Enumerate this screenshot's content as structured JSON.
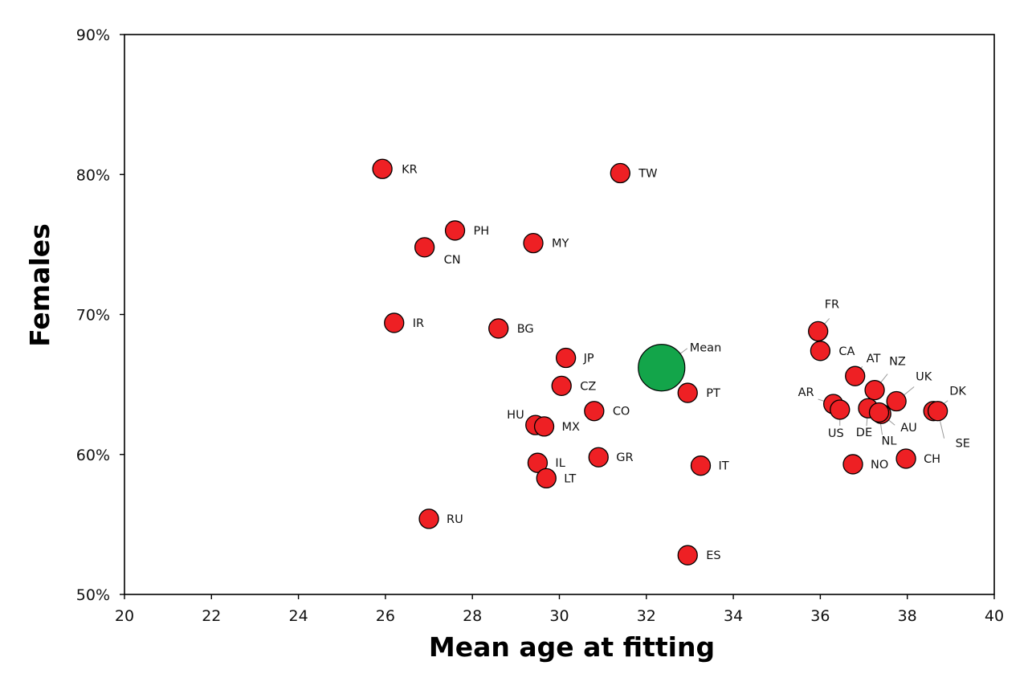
{
  "chart_data": {
    "type": "scatter",
    "xlabel": "Mean age at fitting",
    "ylabel": "Females",
    "xlim": [
      20,
      40
    ],
    "ylim": [
      50,
      90
    ],
    "x_ticks": [
      "20",
      "22",
      "24",
      "26",
      "28",
      "30",
      "32",
      "34",
      "36",
      "38",
      "40"
    ],
    "y_ticks": [
      "50%",
      "60%",
      "70%",
      "80%",
      "90%"
    ],
    "grid": false,
    "legend": "none",
    "colors": {
      "point": "#ee2024",
      "mean": "#13a54a",
      "outline": "#000000",
      "leader": "#999999"
    },
    "points": [
      {
        "label": "KR",
        "x": 25.93,
        "y": 80.4
      },
      {
        "label": "TW",
        "x": 31.4,
        "y": 80.1
      },
      {
        "label": "PH",
        "x": 27.6,
        "y": 76.0
      },
      {
        "label": "MY",
        "x": 29.4,
        "y": 75.1
      },
      {
        "label": "CN",
        "x": 26.9,
        "y": 74.8
      },
      {
        "label": "IR",
        "x": 26.2,
        "y": 69.4
      },
      {
        "label": "BG",
        "x": 28.6,
        "y": 69.0
      },
      {
        "label": "FR",
        "x": 35.95,
        "y": 68.8
      },
      {
        "label": "CA",
        "x": 36.0,
        "y": 67.4
      },
      {
        "label": "JP",
        "x": 30.15,
        "y": 66.9
      },
      {
        "label": "AT",
        "x": 36.8,
        "y": 65.6
      },
      {
        "label": "CZ",
        "x": 30.05,
        "y": 64.9
      },
      {
        "label": "NZ",
        "x": 37.25,
        "y": 64.6
      },
      {
        "label": "PT",
        "x": 32.95,
        "y": 64.4
      },
      {
        "label": "UK",
        "x": 37.75,
        "y": 63.8
      },
      {
        "label": "AR",
        "x": 36.3,
        "y": 63.6
      },
      {
        "label": "DE",
        "x": 37.1,
        "y": 63.3
      },
      {
        "label": "US",
        "x": 36.45,
        "y": 63.2
      },
      {
        "label": "CO",
        "x": 30.8,
        "y": 63.1
      },
      {
        "label": "DK",
        "x": 38.6,
        "y": 63.1
      },
      {
        "label": "SE",
        "x": 38.7,
        "y": 63.1
      },
      {
        "label": "AU",
        "x": 37.4,
        "y": 62.9
      },
      {
        "label": "NL",
        "x": 37.35,
        "y": 63.0
      },
      {
        "label": "HU",
        "x": 29.45,
        "y": 62.1
      },
      {
        "label": "MX",
        "x": 29.65,
        "y": 62.0
      },
      {
        "label": "GR",
        "x": 30.9,
        "y": 59.8
      },
      {
        "label": "CH",
        "x": 37.97,
        "y": 59.7
      },
      {
        "label": "IL",
        "x": 29.5,
        "y": 59.4
      },
      {
        "label": "NO",
        "x": 36.75,
        "y": 59.3
      },
      {
        "label": "IT",
        "x": 33.25,
        "y": 59.2
      },
      {
        "label": "LT",
        "x": 29.7,
        "y": 58.3
      },
      {
        "label": "RU",
        "x": 27.0,
        "y": 55.4
      },
      {
        "label": "ES",
        "x": 32.95,
        "y": 52.8
      }
    ],
    "mean": {
      "label": "Mean",
      "x": 32.35,
      "y": 66.2
    }
  }
}
